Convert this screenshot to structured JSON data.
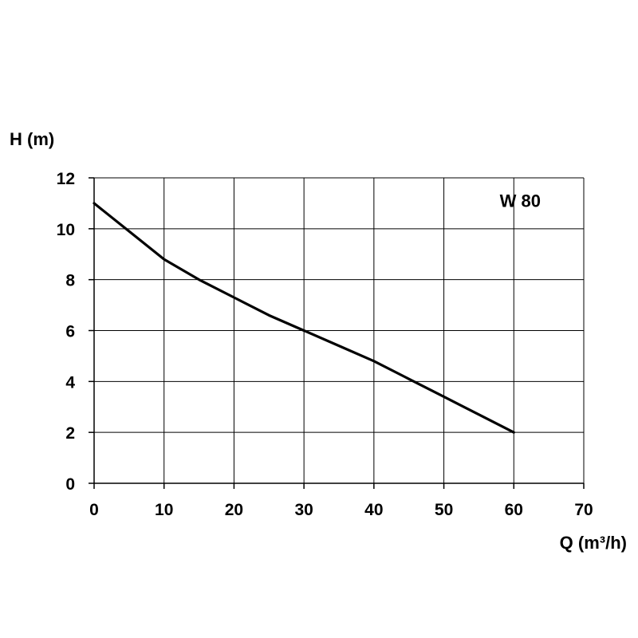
{
  "chart_data": {
    "type": "line",
    "title": "",
    "xlabel": "Q (m³/h)",
    "ylabel": "H (m)",
    "xlim": [
      0,
      70
    ],
    "ylim": [
      0,
      12
    ],
    "xticks": [
      0,
      10,
      20,
      30,
      40,
      50,
      60,
      70
    ],
    "yticks": [
      0,
      2,
      4,
      6,
      8,
      10,
      12
    ],
    "grid": true,
    "annotations": [
      {
        "text": "W 80",
        "x": 60,
        "y": 11.1
      }
    ],
    "series": [
      {
        "name": "W 80",
        "x": [
          0,
          5,
          10,
          15,
          20,
          25,
          30,
          35,
          40,
          45,
          50,
          55,
          60
        ],
        "y": [
          11.0,
          9.9,
          8.8,
          8.0,
          7.3,
          6.6,
          6.0,
          5.4,
          4.8,
          4.1,
          3.4,
          2.7,
          2.0
        ]
      }
    ],
    "colors": {
      "line": "#000000",
      "grid": "#000000",
      "background": "#ffffff"
    }
  }
}
